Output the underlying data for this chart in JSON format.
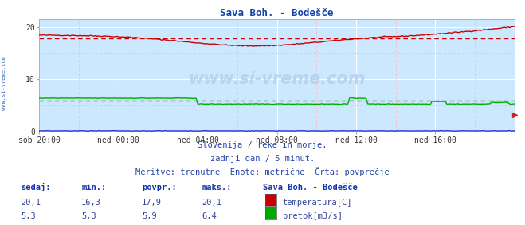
{
  "title": "Sava Boh. - Bodešče",
  "title_color": "#1144aa",
  "bg_color": "#ffffff",
  "plot_bg_color": "#cce8ff",
  "grid_color_major": "#ffffff",
  "grid_minor_color": "#ffbbbb",
  "x_labels": [
    "sob 20:00",
    "ned 00:00",
    "ned 04:00",
    "ned 08:00",
    "ned 12:00",
    "ned 16:00"
  ],
  "x_ticks": [
    0,
    24,
    48,
    72,
    96,
    120
  ],
  "x_max": 144,
  "y_ticks": [
    0,
    10,
    20
  ],
  "y_min": 0,
  "y_max": 21.5,
  "temp_avg": 17.9,
  "flow_avg": 5.9,
  "temp_color": "#cc0000",
  "flow_color": "#00aa00",
  "level_color": "#0000cc",
  "watermark": "www.si-vreme.com",
  "info_line1": "Slovenija / reke in morje.",
  "info_line2": "zadnji dan / 5 minut.",
  "info_line3": "Meritve: trenutne  Enote: metrične  Črta: povprečje",
  "legend_title": "Sava Boh. - Bodešče",
  "sedaj_label": "sedaj:",
  "min_label": "min.:",
  "povpr_label": "povpr.:",
  "maks_label": "maks.:",
  "temp_sedaj": "20,1",
  "temp_min": "16,3",
  "temp_povpr": "17,9",
  "temp_maks": "20,1",
  "flow_sedaj": "5,3",
  "flow_min": "5,3",
  "flow_povpr": "5,9",
  "flow_maks": "6,4",
  "temp_label": "temperatura[C]",
  "flow_label": "pretok[m3/s]"
}
